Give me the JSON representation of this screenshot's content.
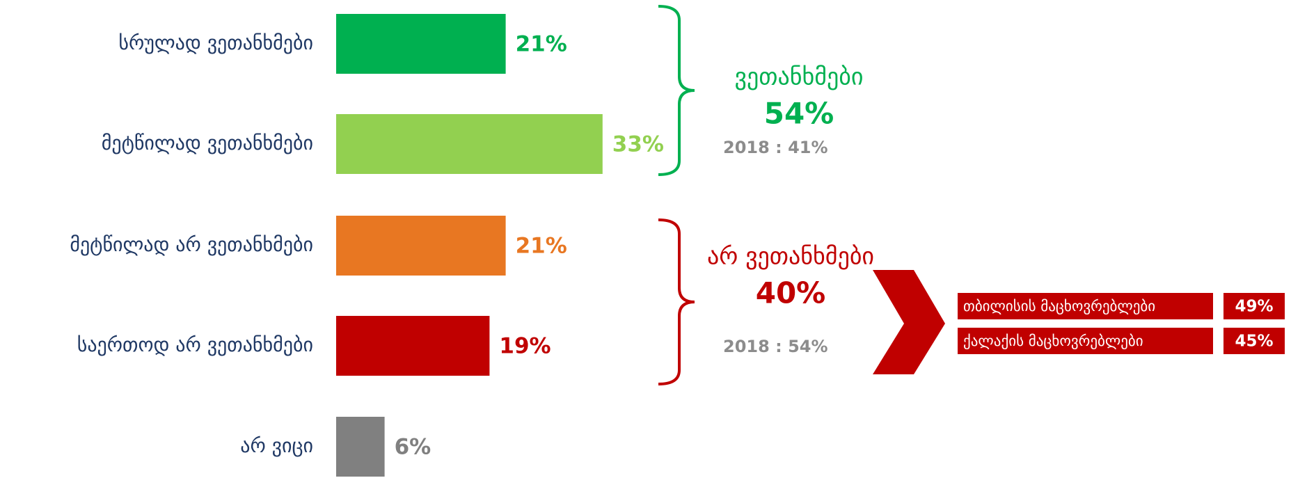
{
  "chart_data": {
    "type": "bar",
    "orientation": "horizontal",
    "categories": [
      "სრულად ვეთანხმები",
      "მეტწილად ვეთანხმები",
      "მეტწილად არ ვეთანხმები",
      "საერთოდ არ ვეთანხმები",
      "არ ვიცი"
    ],
    "values": [
      21,
      33,
      21,
      19,
      6
    ],
    "value_labels": [
      "21%",
      "33%",
      "21%",
      "19%",
      "6%"
    ],
    "colors": [
      "#00b050",
      "#92d050",
      "#e87722",
      "#c00000",
      "#808080"
    ],
    "groups": [
      {
        "label": "ვეთანხმები",
        "value": 54,
        "value_label": "54%",
        "comparison": "2018 : 41%",
        "color": "#00b050"
      },
      {
        "label": "არ ვეთანხმები",
        "value": 40,
        "value_label": "40%",
        "comparison": "2018 : 54%",
        "color": "#c00000",
        "breakdown": [
          {
            "label": "თბილისის მაცხოვრებლები",
            "value": 49,
            "value_label": "49%"
          },
          {
            "label": "ქალაქის მაცხოვრებლები",
            "value": 45,
            "value_label": "45%"
          }
        ]
      }
    ]
  }
}
